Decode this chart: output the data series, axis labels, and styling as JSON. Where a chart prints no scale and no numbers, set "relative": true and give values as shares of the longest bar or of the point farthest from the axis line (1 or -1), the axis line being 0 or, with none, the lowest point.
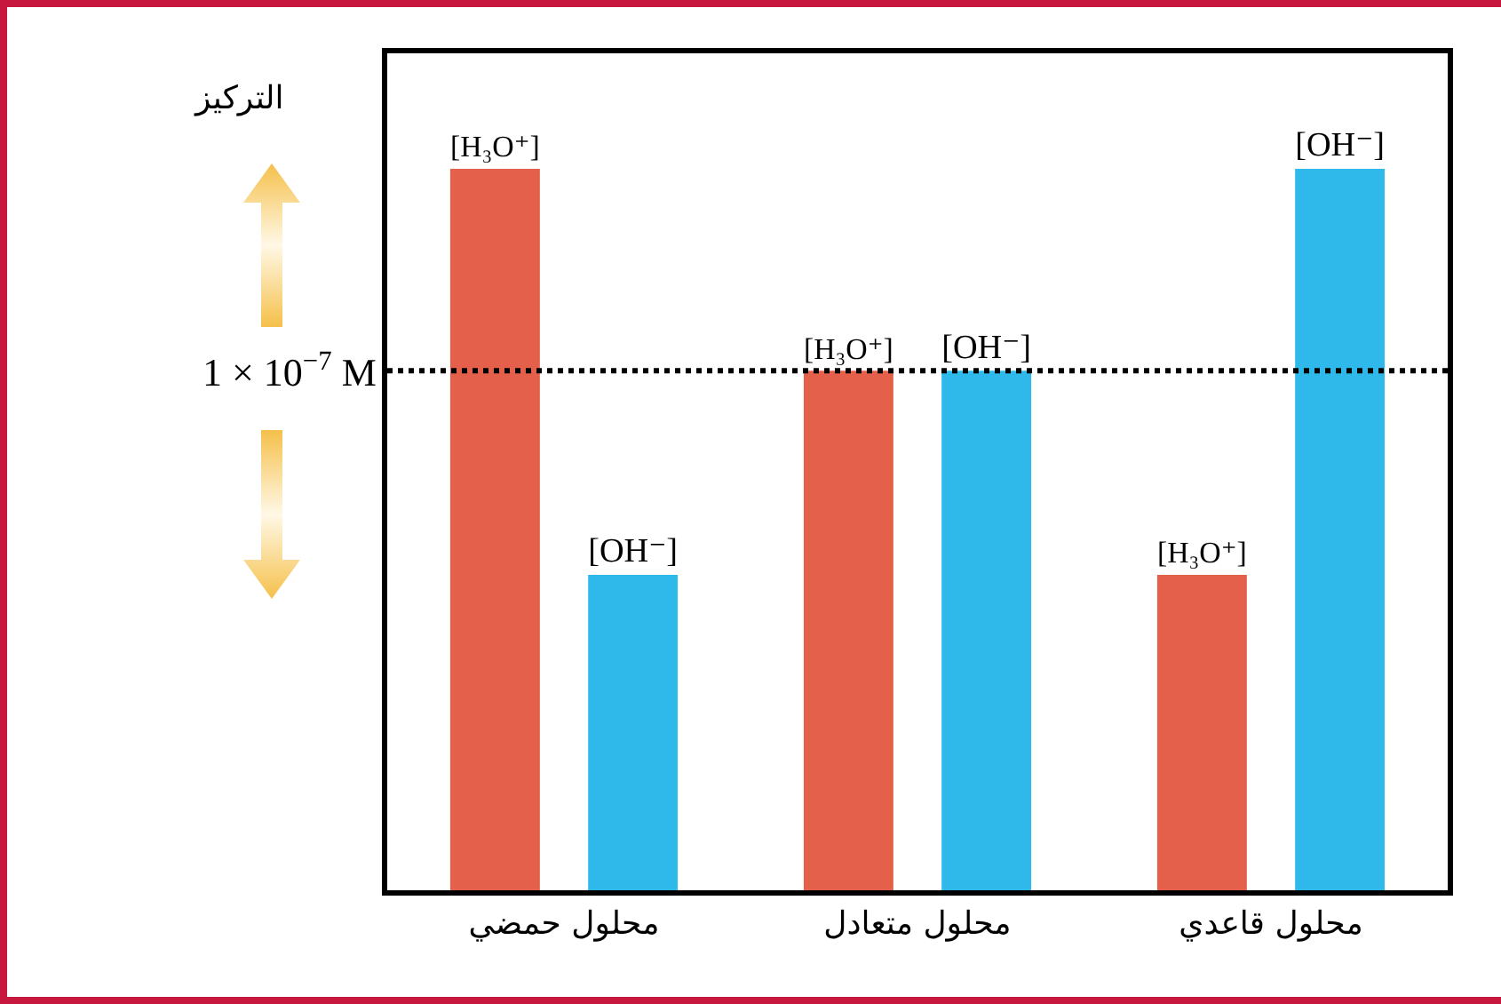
{
  "chart_data": {
    "type": "bar",
    "relative": true,
    "ylabel": "التركيز",
    "categories": [
      "محلول حمضي",
      "محلول متعادل",
      "محلول قاعدي"
    ],
    "series": [
      {
        "name": "[H₃O⁺]",
        "color": "#e5604b",
        "values": [
          1,
          0.72,
          0.437
        ]
      },
      {
        "name": "[OH⁻]",
        "color": "#2fb9ea",
        "values": [
          0.437,
          0.72,
          1
        ]
      }
    ],
    "ref_lines": [
      {
        "axis": "y",
        "value": 0.72,
        "label": "1 × 10$^{−7}$ M",
        "line_style": "dotted",
        "color": "#000000"
      }
    ]
  }
}
